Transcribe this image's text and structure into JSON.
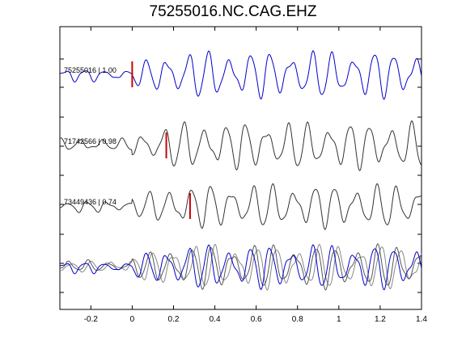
{
  "chart_data": {
    "type": "line",
    "title": "75255016.NC.CAG.EHZ",
    "xlabel": "",
    "ylabel": "",
    "xlim": [
      -0.35,
      1.4
    ],
    "x_ticks": [
      -0.2,
      0,
      0.2,
      0.4,
      0.6,
      0.8,
      1,
      1.2,
      1.4
    ],
    "x_tick_labels": [
      "-0.2",
      "0",
      "0.2",
      "0.4",
      "0.6",
      "0.8",
      "1",
      "1.2",
      "1.4"
    ],
    "grid": false,
    "traces": [
      {
        "label": "75255016 | 1.00",
        "event_id": "75255016",
        "correlation": 1.0,
        "color": "#0000cc",
        "pick_time": 0.0,
        "pick_color": "#cc0000",
        "seed": 1
      },
      {
        "label": "71742566 | 0.98",
        "event_id": "71742566",
        "correlation": 0.98,
        "color": "#333333",
        "pick_time": 0.165,
        "pick_color": "#cc0000",
        "seed": 2
      },
      {
        "label": "73449436 | 0.74",
        "event_id": "73449436",
        "correlation": 0.74,
        "color": "#333333",
        "pick_time": 0.28,
        "pick_color": "#cc0000",
        "seed": 3
      }
    ],
    "stack": {
      "description_colors": [
        "#0000cc",
        "#555555",
        "#888888"
      ]
    }
  }
}
